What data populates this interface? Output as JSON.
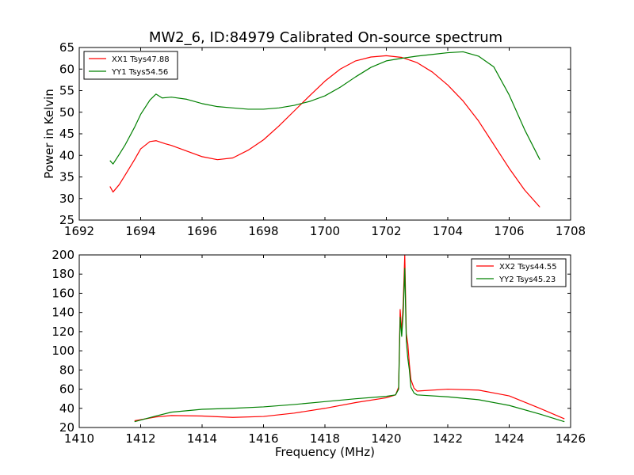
{
  "chart_data": [
    {
      "type": "line",
      "title": "MW2_6, ID:84979 Calibrated On-source spectrum",
      "xlabel": "",
      "ylabel": "Power in Kelvin",
      "xlim": [
        1692,
        1708
      ],
      "ylim": [
        25,
        65
      ],
      "xticks": [
        1692,
        1694,
        1696,
        1698,
        1700,
        1702,
        1704,
        1706,
        1708
      ],
      "yticks": [
        25,
        30,
        35,
        40,
        45,
        50,
        55,
        60,
        65
      ],
      "legend_position": "top-left",
      "grid": false,
      "series": [
        {
          "name": "XX1 Tsys47.88",
          "color": "#ff0000",
          "x": [
            1693.0,
            1693.1,
            1693.3,
            1693.5,
            1693.8,
            1694.0,
            1694.3,
            1694.5,
            1694.8,
            1695.0,
            1695.5,
            1696.0,
            1696.5,
            1697.0,
            1697.5,
            1698.0,
            1698.5,
            1699.0,
            1699.5,
            1700.0,
            1700.5,
            1701.0,
            1701.5,
            1702.0,
            1702.5,
            1703.0,
            1703.5,
            1704.0,
            1704.5,
            1705.0,
            1705.5,
            1706.0,
            1706.5,
            1707.0
          ],
          "y": [
            32.8,
            31.5,
            33.2,
            35.5,
            39.0,
            41.5,
            43.2,
            43.4,
            42.7,
            42.3,
            41.0,
            39.7,
            39.0,
            39.4,
            41.2,
            43.6,
            46.8,
            50.3,
            53.8,
            57.2,
            60.0,
            61.9,
            62.8,
            63.1,
            62.7,
            61.5,
            59.3,
            56.3,
            52.6,
            48.0,
            42.5,
            37.0,
            32.0,
            28.0
          ]
        },
        {
          "name": "YY1 Tsys54.56",
          "color": "#008000",
          "x": [
            1693.0,
            1693.1,
            1693.3,
            1693.5,
            1693.8,
            1694.0,
            1694.3,
            1694.5,
            1694.7,
            1695.0,
            1695.5,
            1696.0,
            1696.5,
            1697.0,
            1697.5,
            1698.0,
            1698.5,
            1699.0,
            1699.5,
            1700.0,
            1700.5,
            1701.0,
            1701.5,
            1702.0,
            1702.5,
            1703.0,
            1703.5,
            1704.0,
            1704.5,
            1705.0,
            1705.5,
            1706.0,
            1706.5,
            1707.0
          ],
          "y": [
            38.8,
            38.0,
            40.2,
            42.5,
            46.5,
            49.5,
            52.8,
            54.2,
            53.3,
            53.5,
            53.0,
            52.0,
            51.3,
            51.0,
            50.7,
            50.7,
            51.0,
            51.6,
            52.5,
            53.8,
            55.8,
            58.2,
            60.4,
            61.9,
            62.5,
            63.0,
            63.4,
            63.8,
            64.0,
            63.0,
            60.5,
            54.0,
            46.0,
            39.0
          ]
        }
      ]
    },
    {
      "type": "line",
      "title": "",
      "xlabel": "Frequency (MHz)",
      "ylabel": "",
      "xlim": [
        1410,
        1426
      ],
      "ylim": [
        20,
        200
      ],
      "xticks": [
        1410,
        1412,
        1414,
        1416,
        1418,
        1420,
        1422,
        1424,
        1426
      ],
      "yticks": [
        20,
        40,
        60,
        80,
        100,
        120,
        140,
        160,
        180,
        200
      ],
      "legend_position": "top-right",
      "grid": false,
      "series": [
        {
          "name": "XX2 Tsys44.55",
          "color": "#ff0000",
          "x": [
            1411.8,
            1412.5,
            1413.0,
            1414.0,
            1415.0,
            1416.0,
            1417.0,
            1418.0,
            1419.0,
            1420.0,
            1420.3,
            1420.4,
            1420.45,
            1420.5,
            1420.55,
            1420.6,
            1420.65,
            1420.7,
            1420.75,
            1420.8,
            1420.9,
            1421.0,
            1422.0,
            1423.0,
            1424.0,
            1425.0,
            1425.8
          ],
          "y": [
            27.0,
            31.0,
            32.5,
            32.0,
            30.5,
            31.5,
            35.0,
            40.0,
            46.0,
            51.0,
            54.0,
            62.0,
            143.0,
            120.0,
            150.0,
            200.0,
            118.0,
            107.0,
            86.0,
            70.0,
            61.0,
            58.0,
            60.0,
            59.0,
            53.0,
            40.0,
            29.0
          ]
        },
        {
          "name": "YY2 Tsys45.23",
          "color": "#008000",
          "x": [
            1411.8,
            1412.5,
            1413.0,
            1414.0,
            1415.0,
            1416.0,
            1417.0,
            1418.0,
            1419.0,
            1420.0,
            1420.3,
            1420.4,
            1420.45,
            1420.5,
            1420.55,
            1420.6,
            1420.65,
            1420.7,
            1420.75,
            1420.8,
            1420.9,
            1421.0,
            1422.0,
            1423.0,
            1424.0,
            1425.0,
            1425.8
          ],
          "y": [
            26.0,
            32.0,
            36.0,
            39.0,
            40.0,
            41.5,
            44.0,
            47.0,
            50.0,
            52.5,
            54.0,
            60.0,
            135.0,
            115.0,
            140.0,
            186.0,
            110.0,
            92.0,
            80.0,
            62.0,
            56.0,
            54.0,
            52.0,
            49.0,
            43.0,
            34.0,
            26.0
          ]
        }
      ]
    }
  ]
}
